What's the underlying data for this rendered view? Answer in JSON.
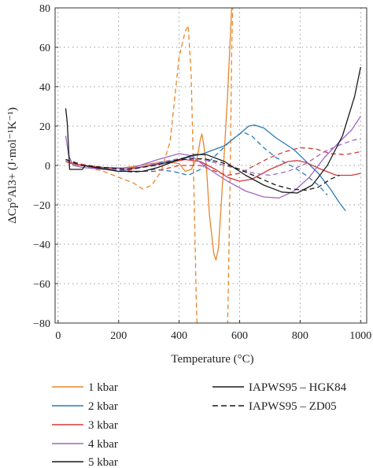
{
  "chart_data": {
    "type": "line",
    "xlabel": "Temperature (°C)",
    "ylabel": "ΔCp°Al3+ (J·mol⁻¹K⁻¹)",
    "xlim": [
      -10,
      1020
    ],
    "ylim": [
      -80,
      80
    ],
    "xticks": [
      0,
      200,
      400,
      600,
      800,
      1000
    ],
    "yticks": [
      -80,
      -60,
      -40,
      -20,
      0,
      20,
      40,
      60,
      80
    ],
    "xtick_labels": [
      "0",
      "200",
      "400",
      "600",
      "800",
      "1000"
    ],
    "ytick_labels": [
      "−80",
      "−60",
      "−40",
      "−20",
      "0",
      "20",
      "40",
      "60",
      "80"
    ],
    "grid": "dotted",
    "legend_position": "bottom",
    "colors": {
      "1kbar": "#E8862A",
      "2kbar": "#2B7BB9",
      "3kbar": "#D6383B",
      "4kbar": "#A067C4",
      "5kbar": "#1A1A1A"
    },
    "legend": [
      {
        "label": "1 kbar",
        "color": "#E8862A",
        "dash": "solid"
      },
      {
        "label": "2 kbar",
        "color": "#2B7BB9",
        "dash": "solid"
      },
      {
        "label": "3 kbar",
        "color": "#D6383B",
        "dash": "solid"
      },
      {
        "label": "4 kbar",
        "color": "#A067C4",
        "dash": "solid"
      },
      {
        "label": "5 kbar",
        "color": "#1A1A1A",
        "dash": "solid"
      },
      {
        "label": "IAPWS95 – HGK84",
        "color": "#1A1A1A",
        "dash": "solid"
      },
      {
        "label": "IAPWS95 – ZD05",
        "color": "#1A1A1A",
        "dash": "dashed"
      }
    ],
    "series": [
      {
        "pressure": "1 kbar",
        "model": "HGK84",
        "color": "#E8862A",
        "dash": "solid",
        "points": [
          [
            25,
            2
          ],
          [
            50,
            0.5
          ],
          [
            100,
            -0.5
          ],
          [
            150,
            -1.5
          ],
          [
            200,
            -1.5
          ],
          [
            250,
            -0.5
          ],
          [
            300,
            0.8
          ],
          [
            350,
            1.8
          ],
          [
            400,
            1
          ],
          [
            420,
            -3
          ],
          [
            440,
            -2
          ],
          [
            460,
            4
          ],
          [
            470,
            13
          ],
          [
            475,
            16
          ],
          [
            480,
            12
          ],
          [
            490,
            0
          ],
          [
            500,
            -25
          ],
          [
            515,
            -45
          ],
          [
            522,
            -48
          ],
          [
            530,
            -42
          ],
          [
            545,
            -5
          ],
          [
            560,
            35
          ],
          [
            570,
            68
          ],
          [
            575,
            85
          ]
        ]
      },
      {
        "pressure": "1 kbar",
        "model": "ZD05",
        "color": "#E8862A",
        "dash": "dashed",
        "points": [
          [
            25,
            3
          ],
          [
            60,
            1
          ],
          [
            100,
            -1
          ],
          [
            150,
            -3
          ],
          [
            200,
            -6
          ],
          [
            250,
            -9
          ],
          [
            280,
            -12
          ],
          [
            310,
            -10
          ],
          [
            340,
            -3
          ],
          [
            370,
            12
          ],
          [
            400,
            55
          ],
          [
            420,
            68
          ],
          [
            430,
            71
          ],
          [
            440,
            45
          ],
          [
            450,
            -20
          ],
          [
            457,
            -70
          ],
          [
            460,
            -85
          ]
        ]
      },
      {
        "pressure": "1 kbar",
        "model": "ZD05b",
        "color": "#E8862A",
        "dash": "dashed",
        "points": [
          [
            560,
            -85
          ],
          [
            565,
            -40
          ],
          [
            570,
            10
          ],
          [
            574,
            60
          ],
          [
            578,
            85
          ]
        ]
      },
      {
        "pressure": "2 kbar",
        "model": "HGK84",
        "color": "#2B7BB9",
        "dash": "solid",
        "points": [
          [
            25,
            2
          ],
          [
            60,
            0.5
          ],
          [
            100,
            -0.5
          ],
          [
            200,
            -3
          ],
          [
            300,
            0
          ],
          [
            400,
            3
          ],
          [
            480,
            6
          ],
          [
            550,
            10
          ],
          [
            600,
            16
          ],
          [
            630,
            20
          ],
          [
            650,
            20.5
          ],
          [
            680,
            19
          ],
          [
            720,
            14
          ],
          [
            780,
            8
          ],
          [
            820,
            2
          ],
          [
            860,
            -4
          ],
          [
            900,
            -12
          ],
          [
            930,
            -19
          ],
          [
            950,
            -23
          ]
        ]
      },
      {
        "pressure": "2 kbar",
        "model": "ZD05",
        "color": "#2B7BB9",
        "dash": "dashed",
        "points": [
          [
            25,
            3
          ],
          [
            80,
            0.5
          ],
          [
            150,
            -1.5
          ],
          [
            250,
            -3.5
          ],
          [
            320,
            -2
          ],
          [
            380,
            -3
          ],
          [
            430,
            -5
          ],
          [
            470,
            -2
          ],
          [
            520,
            5
          ],
          [
            560,
            11
          ],
          [
            590,
            15
          ],
          [
            610,
            17
          ],
          [
            640,
            15
          ],
          [
            680,
            9
          ],
          [
            720,
            4
          ],
          [
            780,
            -1
          ],
          [
            820,
            -5
          ],
          [
            860,
            -10
          ],
          [
            890,
            -15
          ]
        ]
      },
      {
        "pressure": "3 kbar",
        "model": "HGK84",
        "color": "#D6383B",
        "dash": "solid",
        "points": [
          [
            25,
            2
          ],
          [
            80,
            0
          ],
          [
            150,
            -1
          ],
          [
            250,
            -1.5
          ],
          [
            350,
            1
          ],
          [
            420,
            3
          ],
          [
            470,
            2
          ],
          [
            520,
            -2
          ],
          [
            560,
            -6
          ],
          [
            600,
            -8
          ],
          [
            640,
            -7
          ],
          [
            700,
            -2
          ],
          [
            760,
            2
          ],
          [
            790,
            2.5
          ],
          [
            820,
            1.5
          ],
          [
            870,
            -2
          ],
          [
            920,
            -5
          ],
          [
            970,
            -5
          ],
          [
            1000,
            -4
          ]
        ]
      },
      {
        "pressure": "3 kbar",
        "model": "ZD05",
        "color": "#D6383B",
        "dash": "dashed",
        "points": [
          [
            25,
            3
          ],
          [
            80,
            0.5
          ],
          [
            150,
            -1
          ],
          [
            250,
            -3
          ],
          [
            320,
            -3
          ],
          [
            400,
            0
          ],
          [
            470,
            0
          ],
          [
            520,
            -3
          ],
          [
            560,
            -5
          ],
          [
            600,
            -4
          ],
          [
            650,
            0
          ],
          [
            700,
            4
          ],
          [
            750,
            7
          ],
          [
            800,
            9
          ],
          [
            850,
            8.5
          ],
          [
            900,
            6
          ],
          [
            950,
            5.5
          ],
          [
            1000,
            7
          ]
        ]
      },
      {
        "pressure": "4 kbar",
        "model": "HGK84",
        "color": "#A067C4",
        "dash": "solid",
        "points": [
          [
            25,
            15
          ],
          [
            35,
            5
          ],
          [
            50,
            0
          ],
          [
            80,
            -1
          ],
          [
            150,
            -2
          ],
          [
            250,
            -1
          ],
          [
            330,
            3
          ],
          [
            400,
            6
          ],
          [
            440,
            5
          ],
          [
            500,
            -2
          ],
          [
            560,
            -8
          ],
          [
            620,
            -13
          ],
          [
            680,
            -16
          ],
          [
            730,
            -16.5
          ],
          [
            780,
            -13
          ],
          [
            830,
            -6
          ],
          [
            880,
            4
          ],
          [
            930,
            12
          ],
          [
            970,
            18
          ],
          [
            1000,
            25
          ]
        ]
      },
      {
        "pressure": "4 kbar",
        "model": "ZD05",
        "color": "#A067C4",
        "dash": "dashed",
        "points": [
          [
            25,
            3
          ],
          [
            80,
            0
          ],
          [
            150,
            -2
          ],
          [
            250,
            -2
          ],
          [
            330,
            1.5
          ],
          [
            420,
            4
          ],
          [
            480,
            3
          ],
          [
            550,
            0
          ],
          [
            600,
            -2
          ],
          [
            650,
            -4
          ],
          [
            700,
            -5
          ],
          [
            760,
            -3
          ],
          [
            820,
            1
          ],
          [
            880,
            7
          ],
          [
            940,
            11
          ],
          [
            980,
            13
          ],
          [
            1000,
            13.5
          ]
        ]
      },
      {
        "pressure": "5 kbar",
        "model": "HGK84",
        "color": "#1A1A1A",
        "dash": "solid",
        "points": [
          [
            25,
            29
          ],
          [
            30,
            22
          ],
          [
            38,
            -2
          ],
          [
            50,
            -2
          ],
          [
            80,
            -2
          ],
          [
            90,
            0
          ],
          [
            120,
            -1
          ],
          [
            200,
            -3
          ],
          [
            280,
            -3
          ],
          [
            330,
            -1
          ],
          [
            400,
            3
          ],
          [
            450,
            5.5
          ],
          [
            490,
            5.5
          ],
          [
            550,
            2
          ],
          [
            620,
            -5
          ],
          [
            680,
            -10
          ],
          [
            740,
            -13.5
          ],
          [
            790,
            -14
          ],
          [
            840,
            -10
          ],
          [
            890,
            0
          ],
          [
            940,
            15
          ],
          [
            980,
            35
          ],
          [
            1000,
            50
          ]
        ]
      },
      {
        "pressure": "5 kbar",
        "model": "ZD05",
        "color": "#1A1A1A",
        "dash": "dashed",
        "points": [
          [
            25,
            3
          ],
          [
            80,
            0
          ],
          [
            150,
            -1
          ],
          [
            230,
            -2
          ],
          [
            320,
            0
          ],
          [
            400,
            3
          ],
          [
            480,
            3.5
          ],
          [
            540,
            1.5
          ],
          [
            600,
            -2
          ],
          [
            660,
            -6
          ],
          [
            720,
            -10
          ],
          [
            770,
            -12
          ],
          [
            820,
            -12.5
          ],
          [
            860,
            -11
          ],
          [
            900,
            -7
          ],
          [
            930,
            -5
          ]
        ]
      }
    ]
  }
}
